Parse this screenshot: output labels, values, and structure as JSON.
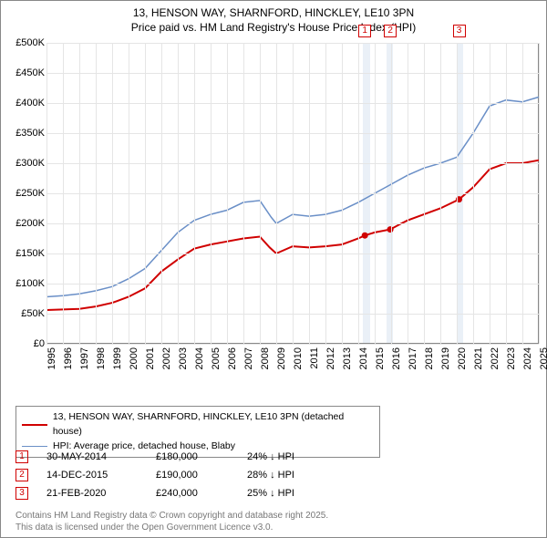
{
  "title": {
    "line1": "13, HENSON WAY, SHARNFORD, HINCKLEY, LE10 3PN",
    "line2": "Price paid vs. HM Land Registry's House Price Index (HPI)"
  },
  "chart": {
    "type": "line",
    "background_color": "#ffffff",
    "grid_color": "#e5e5e5",
    "axis_color": "#888888",
    "ylim": [
      0,
      500000
    ],
    "ytick_step": 50000,
    "ytick_labels": [
      "£0",
      "£50K",
      "£100K",
      "£150K",
      "£200K",
      "£250K",
      "£300K",
      "£350K",
      "£400K",
      "£450K",
      "£500K"
    ],
    "xlim": [
      1995,
      2025
    ],
    "xticks": [
      1995,
      1996,
      1997,
      1998,
      1999,
      2000,
      2001,
      2002,
      2003,
      2004,
      2005,
      2006,
      2007,
      2008,
      2009,
      2010,
      2011,
      2012,
      2013,
      2014,
      2015,
      2016,
      2017,
      2018,
      2019,
      2020,
      2021,
      2022,
      2023,
      2024,
      2025
    ],
    "shaded_bands": [
      {
        "from": 2014.3,
        "to": 2014.7
      },
      {
        "from": 2015.7,
        "to": 2016.1
      },
      {
        "from": 2020.0,
        "to": 2020.4
      }
    ],
    "series": [
      {
        "id": "price_paid",
        "label": "13, HENSON WAY, SHARNFORD, HINCKLEY, LE10 3PN (detached house)",
        "color": "#d00000",
        "line_width": 2,
        "points": [
          [
            1995,
            56000
          ],
          [
            1996,
            57000
          ],
          [
            1997,
            58000
          ],
          [
            1998,
            62000
          ],
          [
            1999,
            68000
          ],
          [
            2000,
            78000
          ],
          [
            2001,
            92000
          ],
          [
            2002,
            120000
          ],
          [
            2003,
            140000
          ],
          [
            2004,
            158000
          ],
          [
            2005,
            165000
          ],
          [
            2006,
            170000
          ],
          [
            2007,
            175000
          ],
          [
            2008,
            178000
          ],
          [
            2008.6,
            160000
          ],
          [
            2009,
            150000
          ],
          [
            2010,
            162000
          ],
          [
            2011,
            160000
          ],
          [
            2012,
            162000
          ],
          [
            2013,
            165000
          ],
          [
            2014,
            175000
          ],
          [
            2014.4,
            180000
          ],
          [
            2015,
            185000
          ],
          [
            2015.95,
            190000
          ],
          [
            2016.5,
            198000
          ],
          [
            2017,
            205000
          ],
          [
            2018,
            215000
          ],
          [
            2019,
            225000
          ],
          [
            2020.14,
            240000
          ],
          [
            2021,
            260000
          ],
          [
            2022,
            290000
          ],
          [
            2023,
            300000
          ],
          [
            2024,
            300000
          ],
          [
            2025,
            305000
          ]
        ],
        "sale_markers": [
          {
            "n": "1",
            "x": 2014.4,
            "y": 180000
          },
          {
            "n": "2",
            "x": 2015.95,
            "y": 190000
          },
          {
            "n": "3",
            "x": 2020.14,
            "y": 240000
          }
        ]
      },
      {
        "id": "hpi",
        "label": "HPI: Average price, detached house, Blaby",
        "color": "#6a8fc7",
        "line_width": 1.5,
        "points": [
          [
            1995,
            78000
          ],
          [
            1996,
            80000
          ],
          [
            1997,
            83000
          ],
          [
            1998,
            88000
          ],
          [
            1999,
            95000
          ],
          [
            2000,
            108000
          ],
          [
            2001,
            125000
          ],
          [
            2002,
            155000
          ],
          [
            2003,
            185000
          ],
          [
            2004,
            205000
          ],
          [
            2005,
            215000
          ],
          [
            2006,
            222000
          ],
          [
            2007,
            235000
          ],
          [
            2008,
            238000
          ],
          [
            2008.7,
            210000
          ],
          [
            2009,
            200000
          ],
          [
            2010,
            215000
          ],
          [
            2011,
            212000
          ],
          [
            2012,
            215000
          ],
          [
            2013,
            222000
          ],
          [
            2014,
            235000
          ],
          [
            2015,
            250000
          ],
          [
            2016,
            265000
          ],
          [
            2017,
            280000
          ],
          [
            2018,
            292000
          ],
          [
            2019,
            300000
          ],
          [
            2020,
            310000
          ],
          [
            2021,
            350000
          ],
          [
            2022,
            395000
          ],
          [
            2023,
            405000
          ],
          [
            2024,
            402000
          ],
          [
            2025,
            410000
          ]
        ]
      }
    ],
    "marker_labels": [
      {
        "n": "1",
        "x": 2014.4
      },
      {
        "n": "2",
        "x": 2015.95
      },
      {
        "n": "3",
        "x": 2020.14
      }
    ]
  },
  "legend": {
    "items": [
      {
        "color": "#d00000",
        "width": 2,
        "label": "13, HENSON WAY, SHARNFORD, HINCKLEY, LE10 3PN (detached house)"
      },
      {
        "color": "#6a8fc7",
        "width": 1.5,
        "label": "HPI: Average price, detached house, Blaby"
      }
    ]
  },
  "sales": [
    {
      "n": "1",
      "date": "30-MAY-2014",
      "price": "£180,000",
      "delta": "24% ↓ HPI"
    },
    {
      "n": "2",
      "date": "14-DEC-2015",
      "price": "£190,000",
      "delta": "28% ↓ HPI"
    },
    {
      "n": "3",
      "date": "21-FEB-2020",
      "price": "£240,000",
      "delta": "25% ↓ HPI"
    }
  ],
  "footer": {
    "line1": "Contains HM Land Registry data © Crown copyright and database right 2025.",
    "line2": "This data is licensed under the Open Government Licence v3.0."
  }
}
